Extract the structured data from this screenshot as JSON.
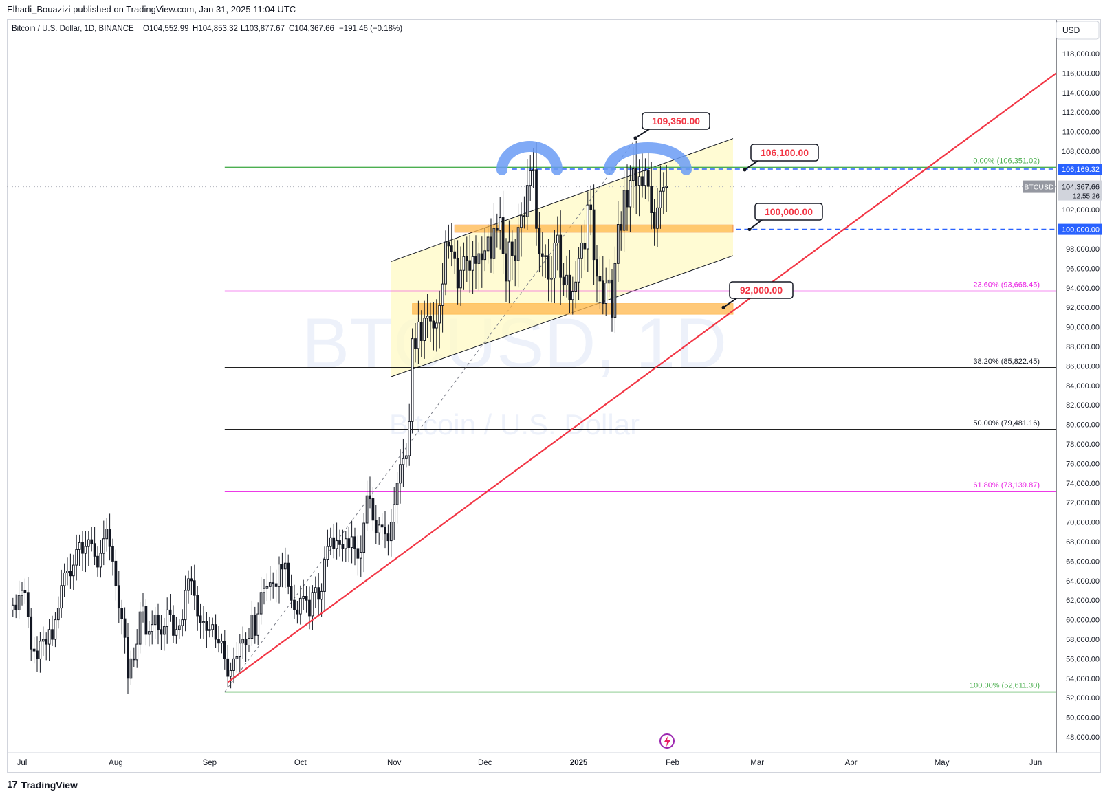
{
  "header": {
    "publisher": "Elhadi_Bouazizi published on TradingView.com, Jan 31, 2025 11:04 UTC"
  },
  "legend": {
    "symbol": "Bitcoin / U.S. Dollar, 1D, BINANCE",
    "open_label": "O",
    "open": "104,552.99",
    "high_label": "H",
    "high": "104,853.32",
    "low_label": "L",
    "low": "103,877.67",
    "close_label": "C",
    "close": "104,367.66",
    "change": "−191.46 (−0.18%)"
  },
  "watermark": {
    "line1": "BTCUSD, 1D",
    "line2": "Bitcoin / U.S. Dollar"
  },
  "currency_button": "USD",
  "symbol_tag": "BTCUSD",
  "countdown": "12:55:26",
  "footer": {
    "brand": "TradingView"
  },
  "colors": {
    "up": "#131722",
    "down": "#131722",
    "fib_green": "#4caf50",
    "fib_magenta": "#e91ee3",
    "fib_black": "#000000",
    "trend_red": "#f23645",
    "zone_orange": "#ffb74d",
    "channel_fill": "#fff9c4",
    "hs_blue": "#6a9bf4",
    "dash_blue": "#2962ff"
  },
  "chart_data": {
    "type": "candlestick",
    "title": "Bitcoin / U.S. Dollar, 1D, BINANCE",
    "x_axis": {
      "type": "date",
      "range": [
        "2024-06-28",
        "2025-06-08"
      ],
      "tick_labels": [
        {
          "date": "2024-07-01",
          "label": "Jul"
        },
        {
          "date": "2024-08-01",
          "label": "Aug"
        },
        {
          "date": "2024-09-01",
          "label": "Sep"
        },
        {
          "date": "2024-10-01",
          "label": "Oct"
        },
        {
          "date": "2024-11-01",
          "label": "Nov"
        },
        {
          "date": "2024-12-01",
          "label": "Dec"
        },
        {
          "date": "2025-01-01",
          "label": "2025"
        },
        {
          "date": "2025-02-01",
          "label": "Feb"
        },
        {
          "date": "2025-03-01",
          "label": "Mar"
        },
        {
          "date": "2025-04-01",
          "label": "Apr"
        },
        {
          "date": "2025-05-01",
          "label": "May"
        },
        {
          "date": "2025-06-01",
          "label": "Jun"
        }
      ]
    },
    "y_axis": {
      "currency": "USD",
      "range": [
        46500,
        120000
      ],
      "tick_labels": [
        "118,000.00",
        "116,000.00",
        "114,000.00",
        "112,000.00",
        "110,000.00",
        "108,000.00",
        "106,000.00",
        "104,000.00",
        "102,000.00",
        "100,000.00",
        "98,000.00",
        "96,000.00",
        "94,000.00",
        "92,000.00",
        "90,000.00",
        "88,000.00",
        "86,000.00",
        "84,000.00",
        "82,000.00",
        "80,000.00",
        "78,000.00",
        "76,000.00",
        "74,000.00",
        "72,000.00",
        "70,000.00",
        "68,000.00",
        "66,000.00",
        "64,000.00",
        "62,000.00",
        "60,000.00",
        "58,000.00",
        "56,000.00",
        "54,000.00",
        "52,000.00",
        "50,000.00",
        "48,000.00"
      ],
      "tick_values": [
        118000,
        116000,
        114000,
        112000,
        110000,
        108000,
        106000,
        104000,
        102000,
        100000,
        98000,
        96000,
        94000,
        92000,
        90000,
        88000,
        86000,
        84000,
        82000,
        80000,
        78000,
        76000,
        74000,
        72000,
        70000,
        68000,
        66000,
        64000,
        62000,
        60000,
        58000,
        56000,
        54000,
        52000,
        50000,
        48000
      ]
    },
    "series": [
      {
        "date_start": "2024-06-28",
        "close": [
          61500,
          61000,
          62500,
          63000,
          62800,
          60300,
          57000,
          56800,
          56000,
          57800,
          58000,
          57500,
          59000,
          58000,
          60000,
          61200,
          63500,
          64800,
          65000,
          64500,
          65600,
          67200,
          67900,
          66800,
          67500,
          68200,
          67800,
          66500,
          65400,
          66800,
          68300,
          69300,
          67500,
          66000,
          63500,
          61200,
          60100,
          58200,
          54000,
          56000,
          55900,
          57500,
          60800,
          61400,
          58500,
          58800,
          59500,
          60500,
          59000,
          58500,
          59300,
          61000,
          60500,
          58400,
          59000,
          59400,
          60000,
          63000,
          64200,
          64000,
          62500,
          60400,
          59700,
          59800,
          58900,
          59000,
          59500,
          58000,
          57600,
          57800,
          56000,
          54200,
          54800,
          56000,
          56200,
          57600,
          58000,
          57400,
          58100,
          60500,
          58400,
          60600,
          62800,
          63200,
          63400,
          63800,
          63700,
          63400,
          65700,
          65200,
          65800,
          63400,
          62000,
          61000,
          60600,
          62200,
          62400,
          62000,
          60400,
          62800,
          63300,
          62100,
          62900,
          66200,
          67500,
          68400,
          67300,
          68100,
          67700,
          67300,
          68300,
          67400,
          68500,
          67300,
          66300,
          66900,
          69900,
          72700,
          72400,
          70200,
          68900,
          69700,
          69500,
          68800,
          68100,
          70000,
          71800,
          74000,
          75900,
          76500,
          76800,
          80300,
          88800,
          87800,
          90500,
          88600,
          90900,
          91100,
          90600,
          89900,
          90400,
          92200,
          94400,
          98700,
          98300,
          97700,
          97000,
          94000,
          95800,
          97200,
          96800,
          95800,
          97200,
          96500,
          97500,
          96900,
          97800,
          99200,
          97000,
          100100,
          99900,
          101200,
          97500,
          94700,
          98700,
          97300,
          96800,
          100200,
          101400,
          101300,
          104500,
          106000,
          106100,
          100100,
          97500,
          97200,
          97300,
          94900,
          95000,
          98600,
          99400,
          95100,
          94300,
          95300,
          92800,
          93600,
          94600,
          97000,
          98600,
          98000,
          102500,
          102000,
          96900,
          95200,
          94700,
          92400,
          94500,
          94800,
          91000,
          96500,
          100500,
          99900,
          104000,
          102300,
          105000,
          106200,
          104500,
          105400,
          104500,
          106000,
          104400,
          101700,
          100100,
          102200,
          103900,
          104300,
          104400
        ],
        "first_open": 61000
      }
    ],
    "annotations": [
      {
        "type": "label",
        "text": "109,350.00",
        "value": 109350
      },
      {
        "type": "label",
        "text": "106,100.00",
        "value": 106100
      },
      {
        "type": "label",
        "text": "100,000.00",
        "value": 100000
      },
      {
        "type": "label",
        "text": "92,000.00",
        "value": 92000
      }
    ],
    "fibonacci": [
      {
        "label": "0.00% (106,351.02)",
        "value": 106351.02,
        "color": "#4caf50"
      },
      {
        "label": "23.60% (93,668.45)",
        "value": 93668.45,
        "color": "#e91ee3"
      },
      {
        "label": "38.20% (85,822.45)",
        "value": 85822.45,
        "color": "#000000"
      },
      {
        "label": "50.00% (79,481.16)",
        "value": 79481.16,
        "color": "#000000"
      },
      {
        "label": "61.80% (73,139.87)",
        "value": 73139.87,
        "color": "#e91ee3"
      },
      {
        "label": "100.00% (52,611.30)",
        "value": 52611.3,
        "color": "#4caf50"
      }
    ],
    "price_tags": [
      {
        "text": "106,169.32",
        "value": 106169.32
      },
      {
        "text": "104,367.66",
        "value": 104367.66
      },
      {
        "text": "100,000.00",
        "value": 100000
      }
    ],
    "grid": false,
    "legend": "top-left"
  }
}
